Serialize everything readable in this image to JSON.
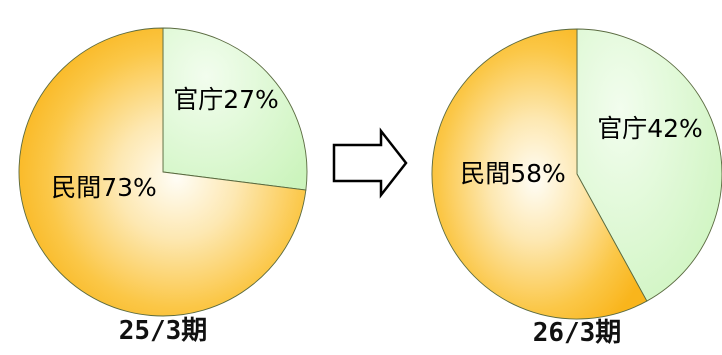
{
  "chart_data": [
    {
      "type": "pie",
      "title": "25/3期",
      "slices": [
        {
          "name": "官庁",
          "label": "官庁27%",
          "value": 27,
          "color": "#d6f7c8"
        },
        {
          "name": "民間",
          "label": "民間73%",
          "value": 73,
          "color": "#fbbb22"
        }
      ]
    },
    {
      "type": "pie",
      "title": "26/3期",
      "slices": [
        {
          "name": "官庁",
          "label": "官庁42%",
          "value": 42,
          "color": "#d6f7c8"
        },
        {
          "name": "民間",
          "label": "民間58%",
          "value": 58,
          "color": "#fbbb22"
        }
      ]
    }
  ],
  "arrow_icon": "right-arrow-icon"
}
